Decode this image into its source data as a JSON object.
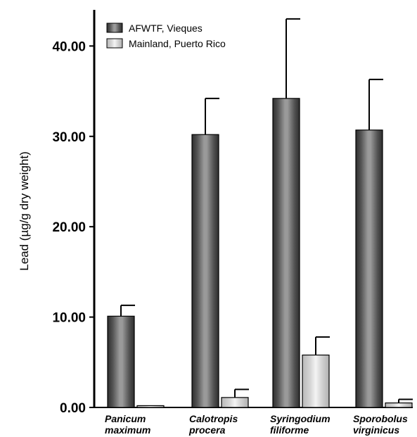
{
  "chart_data": {
    "type": "bar",
    "ylabel": "Lead (µg/g dry weight)",
    "xlabel": "",
    "categories": [
      [
        "Panicum",
        "maximum"
      ],
      [
        "Calotropis",
        "procera"
      ],
      [
        "Syringodium",
        "filiforme"
      ],
      [
        "Sporobolus",
        "virginicus"
      ]
    ],
    "series": [
      {
        "name": "AFWTF, Vieques",
        "values": [
          10.1,
          30.2,
          34.2,
          30.7
        ],
        "errors": [
          1.2,
          4.0,
          8.8,
          5.6
        ],
        "color": "#777777"
      },
      {
        "name": "Mainland, Puerto Rico",
        "values": [
          0.2,
          1.1,
          5.8,
          0.5
        ],
        "errors": [
          0.0,
          0.9,
          2.0,
          0.4
        ],
        "color": "#cfcfcf"
      }
    ],
    "ylim": [
      0,
      44
    ],
    "yticks": [
      0,
      10,
      20,
      30,
      40
    ],
    "ytick_labels": [
      "0.00",
      "10.00",
      "20.00",
      "30.00",
      "40.00"
    ],
    "legend_position": "top-left",
    "grid": false
  }
}
